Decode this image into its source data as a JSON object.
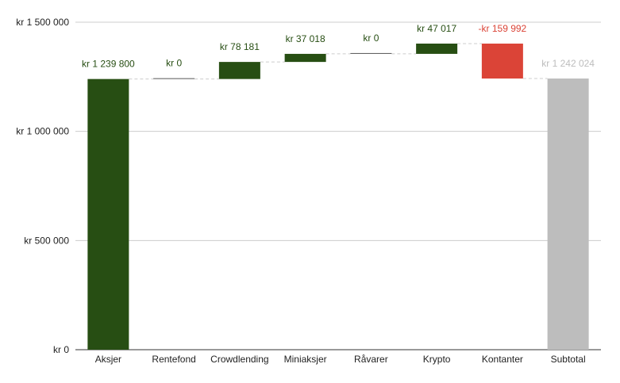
{
  "colors": {
    "increase": "#274e13",
    "decrease": "#db4437",
    "total": "#bdbdbd",
    "grid": "#cccccc",
    "connector": "#cccccc",
    "axis_text": "#222222"
  },
  "chart_data": {
    "type": "bar",
    "subtype": "waterfall",
    "title": "",
    "xlabel": "",
    "ylabel": "",
    "ylim": [
      0,
      1500000
    ],
    "grid": true,
    "legend": "none",
    "y_ticks": [
      {
        "value": 0,
        "label": "kr   0"
      },
      {
        "value": 500000,
        "label": "kr  500 000"
      },
      {
        "value": 1000000,
        "label": "kr 1 000 000"
      },
      {
        "value": 1500000,
        "label": "kr 1 500 000"
      }
    ],
    "categories": [
      "Aksjer",
      "Rentefond",
      "Crowdlending",
      "Miniaksjer",
      "Råvarer",
      "Krypto",
      "Kontanter",
      "Subtotal"
    ],
    "values": [
      1239800,
      0,
      78181,
      37018,
      0,
      47017,
      -159992,
      1242024
    ],
    "kinds": [
      "increase",
      "increase",
      "increase",
      "increase",
      "increase",
      "increase",
      "decrease",
      "total"
    ],
    "data_labels": [
      "kr 1 239 800",
      "kr   0",
      "kr  78 181",
      "kr  37 018",
      "kr   0",
      "kr  47 017",
      "-kr  159 992",
      "kr 1 242 024"
    ]
  }
}
